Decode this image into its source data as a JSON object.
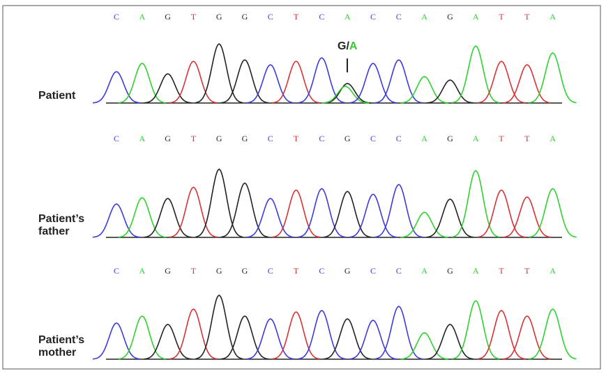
{
  "panels": [
    {
      "label": [
        "Patient"
      ],
      "bases": [
        "C",
        "A",
        "G",
        "T",
        "G",
        "G",
        "C",
        "T",
        "C",
        "A",
        "C",
        "C",
        "A",
        "G",
        "A",
        "T",
        "T",
        "A"
      ]
    },
    {
      "label": [
        "Patient’s",
        "father"
      ],
      "bases": [
        "C",
        "A",
        "G",
        "T",
        "G",
        "G",
        "C",
        "T",
        "C",
        "G",
        "C",
        "C",
        "A",
        "G",
        "A",
        "T",
        "T",
        "A"
      ]
    },
    {
      "label": [
        "Patient’s",
        "mother"
      ],
      "bases": [
        "C",
        "A",
        "G",
        "T",
        "G",
        "G",
        "C",
        "T",
        "C",
        "G",
        "C",
        "C",
        "A",
        "G",
        "A",
        "T",
        "T",
        "A"
      ]
    }
  ],
  "annotation": {
    "parts": [
      "G/",
      "A"
    ]
  }
}
